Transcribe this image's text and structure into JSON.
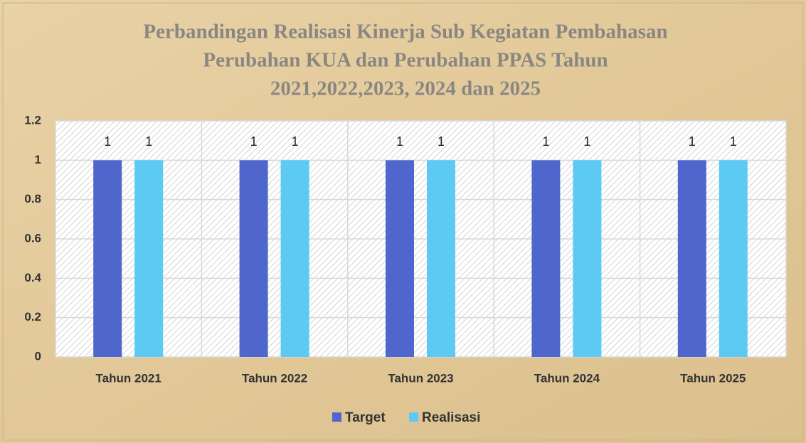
{
  "chart_data": {
    "type": "bar",
    "title": [
      "Perbandingan Realisasi Kinerja Sub Kegiatan Pembahasan",
      "Perubahan KUA dan Perubahan PPAS  Tahun",
      "2021,2022,2023, 2024 dan 2025"
    ],
    "categories": [
      "Tahun 2021",
      "Tahun 2022",
      "Tahun 2023",
      "Tahun 2024",
      "Tahun 2025"
    ],
    "series": [
      {
        "name": "Target",
        "color": "#4f66cc",
        "values": [
          1,
          1,
          1,
          1,
          1
        ]
      },
      {
        "name": "Realisasi",
        "color": "#5ccaf2",
        "values": [
          1,
          1,
          1,
          1,
          1
        ]
      }
    ],
    "ylim": [
      0,
      1.2
    ],
    "yticks": [
      0,
      0.2,
      0.4,
      0.6,
      0.8,
      1,
      1.2
    ],
    "grid": true,
    "legend": "bottom"
  }
}
